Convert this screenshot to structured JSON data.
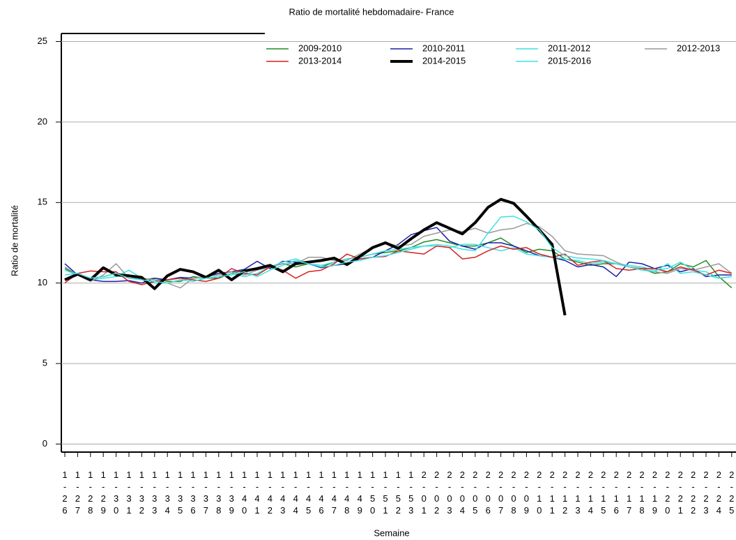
{
  "chart_data": {
    "type": "line",
    "title": "Ratio de mortalité hebdomadaire- France",
    "x_label": "Semaine",
    "y_label": "Ratio de mortalité",
    "categories": [
      "1-26",
      "1-27",
      "1-28",
      "1-29",
      "1-30",
      "1-31",
      "1-32",
      "1-33",
      "1-34",
      "1-35",
      "1-36",
      "1-37",
      "1-38",
      "1-39",
      "1-40",
      "1-41",
      "1-42",
      "1-43",
      "1-44",
      "1-45",
      "1-46",
      "1-47",
      "1-48",
      "1-49",
      "1-50",
      "1-51",
      "1-52",
      "1-53",
      "2-01",
      "2-02",
      "2-03",
      "2-04",
      "2-05",
      "2-06",
      "2-07",
      "2-08",
      "2-09",
      "2-10",
      "2-11",
      "2-12",
      "2-13",
      "2-14",
      "2-15",
      "2-16",
      "2-17",
      "2-18",
      "2-19",
      "2-20",
      "2-21",
      "2-22",
      "2-23",
      "2-24",
      "2-25"
    ],
    "ylim": [
      -0.5,
      25.5
    ],
    "yticks": [
      0,
      5,
      10,
      15,
      20,
      25
    ],
    "grid": true,
    "series": [
      {
        "name": "2009-2010",
        "color": "#228b22",
        "values": [
          10.9,
          10.5,
          10.3,
          10.4,
          10.6,
          10.5,
          10.2,
          10.3,
          10.1,
          10.1,
          10.4,
          10.3,
          10.3,
          10.6,
          10.8,
          10.9,
          11.0,
          11.2,
          11.0,
          11.2,
          11.0,
          11.3,
          11.5,
          11.6,
          11.8,
          11.9,
          12.0,
          12.2,
          12.55,
          12.7,
          12.5,
          12.3,
          12.3,
          12.5,
          12.8,
          12.3,
          11.9,
          12.1,
          12.0,
          11.5,
          11.3,
          11.1,
          11.2,
          11.2,
          11.0,
          10.9,
          10.6,
          10.7,
          11.2,
          11.0,
          11.4,
          10.4,
          9.7
        ]
      },
      {
        "name": "2010-2011",
        "color": "#1c1caa",
        "values": [
          11.2,
          10.5,
          10.2,
          10.1,
          10.1,
          10.15,
          10.0,
          10.3,
          10.2,
          10.35,
          10.3,
          10.4,
          10.6,
          10.7,
          10.85,
          11.35,
          10.9,
          11.35,
          11.3,
          11.2,
          10.95,
          11.1,
          11.2,
          11.5,
          11.6,
          12.0,
          12.4,
          13.0,
          13.25,
          13.45,
          12.6,
          12.3,
          12.1,
          12.5,
          12.5,
          12.3,
          12.0,
          11.7,
          11.6,
          11.4,
          11.0,
          11.15,
          11.0,
          10.4,
          11.3,
          11.2,
          10.9,
          11.1,
          10.7,
          10.9,
          10.4,
          10.5,
          10.5
        ]
      },
      {
        "name": "2011-2012",
        "color": "#40e0e0",
        "values": [
          10.8,
          10.5,
          10.2,
          10.3,
          10.4,
          10.8,
          10.3,
          10.0,
          10.0,
          10.2,
          10.3,
          10.3,
          10.4,
          10.6,
          10.4,
          10.6,
          11.0,
          11.3,
          11.5,
          11.2,
          11.1,
          11.3,
          11.5,
          11.6,
          11.8,
          12.0,
          12.1,
          12.2,
          12.3,
          12.3,
          12.2,
          12.4,
          12.4,
          12.2,
          12.0,
          12.2,
          11.8,
          11.7,
          11.6,
          11.5,
          11.4,
          11.2,
          11.3,
          11.2,
          11.1,
          11.0,
          10.8,
          10.9,
          11.3,
          10.8,
          10.7,
          10.3,
          10.4
        ]
      },
      {
        "name": "2012-2013",
        "color": "#999999",
        "values": [
          11.0,
          10.5,
          10.1,
          10.5,
          11.2,
          10.3,
          10.3,
          10.2,
          10.0,
          9.7,
          10.3,
          10.4,
          10.5,
          10.7,
          10.5,
          10.8,
          11.0,
          11.2,
          11.2,
          11.6,
          11.6,
          11.4,
          11.4,
          11.8,
          12.2,
          12.5,
          12.3,
          12.4,
          12.9,
          13.1,
          13.3,
          13.2,
          13.4,
          13.1,
          13.3,
          13.4,
          13.7,
          13.5,
          12.9,
          12.0,
          11.8,
          11.75,
          11.7,
          11.3,
          11.0,
          10.9,
          10.7,
          10.6,
          10.9,
          10.8,
          11.0,
          11.2,
          10.6
        ]
      },
      {
        "name": "2013-2014",
        "color": "#d62020",
        "values": [
          10.0,
          10.6,
          10.75,
          10.7,
          10.7,
          10.1,
          9.9,
          10.1,
          10.2,
          10.3,
          10.2,
          10.1,
          10.3,
          10.9,
          10.6,
          10.5,
          11.0,
          10.8,
          10.3,
          10.7,
          10.8,
          11.2,
          11.8,
          11.5,
          11.6,
          11.65,
          12.0,
          11.9,
          11.8,
          12.3,
          12.2,
          11.5,
          11.6,
          12.0,
          12.3,
          12.1,
          12.2,
          11.8,
          11.6,
          11.8,
          11.1,
          11.3,
          11.4,
          10.9,
          10.8,
          10.9,
          10.9,
          10.7,
          11.0,
          10.8,
          10.5,
          10.8,
          10.6
        ]
      },
      {
        "name": "2014-2015",
        "color": "#000000",
        "width": 4,
        "values": [
          10.2,
          10.55,
          10.2,
          10.95,
          10.5,
          10.45,
          10.35,
          9.65,
          10.45,
          10.85,
          10.7,
          10.35,
          10.8,
          10.2,
          10.75,
          10.9,
          11.1,
          10.7,
          11.2,
          11.3,
          11.4,
          11.55,
          11.15,
          11.65,
          12.2,
          12.5,
          12.15,
          12.75,
          13.3,
          13.75,
          13.4,
          13.05,
          13.75,
          14.7,
          15.2,
          14.95,
          14.15,
          13.3,
          12.4,
          8.0,
          null,
          null,
          null,
          null,
          null,
          null,
          null,
          null,
          null,
          null,
          null,
          null,
          null
        ]
      },
      {
        "name": "2015-2016",
        "color": "#40e0e0",
        "values": [
          10.5,
          10.6,
          10.3,
          10.4,
          10.6,
          10.3,
          10.2,
          10.1,
          10.0,
          10.2,
          10.1,
          10.3,
          10.4,
          10.5,
          10.7,
          10.4,
          10.8,
          11.1,
          11.4,
          11.2,
          11.0,
          11.1,
          11.3,
          11.4,
          11.6,
          11.7,
          11.9,
          12.1,
          12.3,
          12.4,
          12.3,
          12.1,
          12.0,
          13.1,
          14.1,
          14.15,
          13.8,
          13.3,
          12.2,
          11.7,
          11.55,
          11.5,
          11.4,
          11.2,
          11.0,
          10.8,
          10.7,
          11.2,
          10.6,
          10.7,
          10.5,
          10.3,
          10.4
        ]
      }
    ]
  }
}
